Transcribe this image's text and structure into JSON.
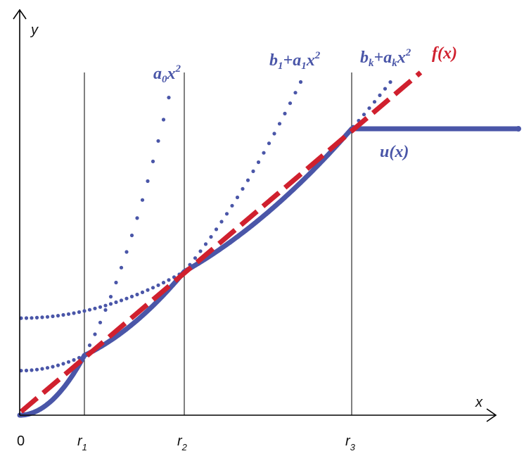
{
  "axes": {
    "x_label": "x",
    "y_label": "y",
    "origin_label": "0",
    "ticks": [
      {
        "base": "r",
        "sub": "1"
      },
      {
        "base": "r",
        "sub": "2"
      },
      {
        "base": "r",
        "sub": "3"
      }
    ]
  },
  "labels": {
    "a0x2": {
      "a": "a",
      "a_sub": "0",
      "x": "x",
      "exp": "2"
    },
    "b1": {
      "b": "b",
      "b_sub": "1",
      "plus": "+",
      "a": "a",
      "a_sub": "1",
      "x": "x",
      "exp": "2"
    },
    "bk": {
      "b": "b",
      "b_sub": "k",
      "plus": "+",
      "a": "a",
      "a_sub": "k",
      "x": "x",
      "exp": "2"
    },
    "f": "f(x)",
    "u": "u(x)"
  },
  "colors": {
    "blue": "#4a56a8",
    "red": "#d0202e",
    "axis": "#000000"
  }
}
